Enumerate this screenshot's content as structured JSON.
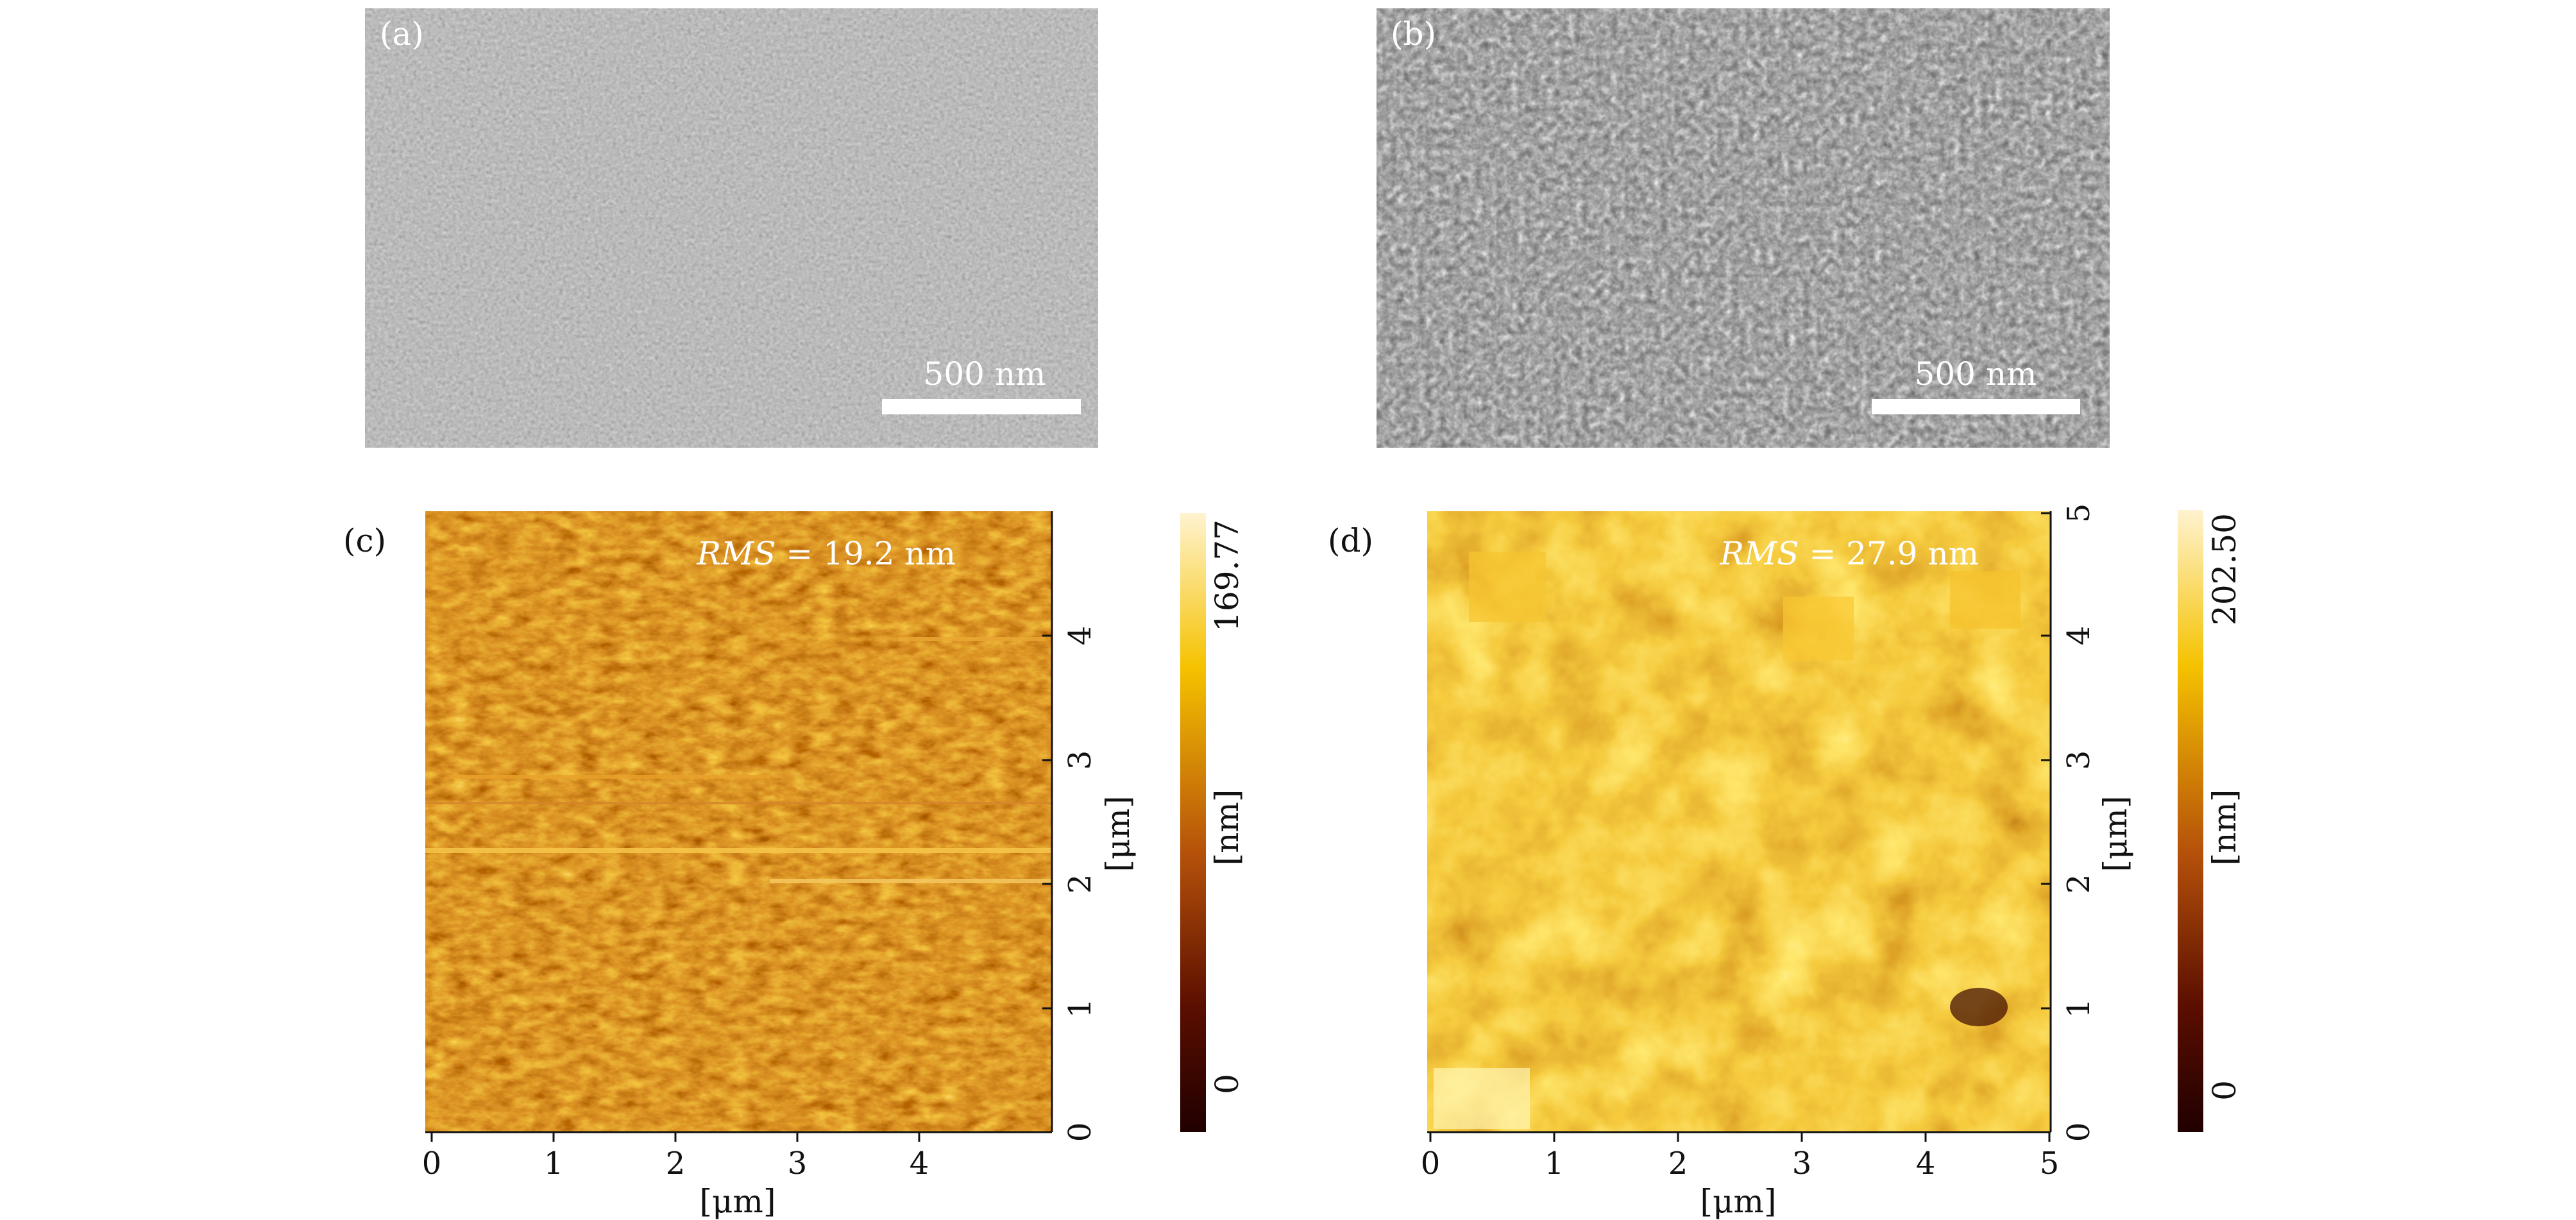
{
  "panels": {
    "a": {
      "label": "(a)",
      "scale_bar": "500 nm"
    },
    "b": {
      "label": "(b)",
      "scale_bar": "500 nm"
    },
    "c": {
      "label": "(c)",
      "rms_prefix": "RMS",
      "rms_value": " = 19.2 nm",
      "x_ticks": [
        "0",
        "1",
        "2",
        "3",
        "4"
      ],
      "y_ticks": [
        "0",
        "1",
        "2",
        "3",
        "4"
      ],
      "x_label": "[μm]",
      "y_label": "[μm]",
      "colorbar": {
        "max": "169.77",
        "min": "0",
        "label": "[nm]"
      }
    },
    "d": {
      "label": "(d)",
      "rms_prefix": "RMS",
      "rms_value": " = 27.9 nm",
      "x_ticks": [
        "0",
        "1",
        "2",
        "3",
        "4",
        "5"
      ],
      "y_ticks": [
        "0",
        "1",
        "2",
        "3",
        "4",
        "5"
      ],
      "x_label": "[μm]",
      "y_label": "[μm]",
      "colorbar": {
        "max": "202.50",
        "min": "0",
        "label": "[nm]"
      }
    }
  },
  "colors": {
    "sem_base": "#7b7b7b",
    "afm_dark": "#2a0400",
    "afm_mid": "#b85a06",
    "afm_light": "#ffeec0",
    "axis": "#111111",
    "scalebar": "#ffffff"
  }
}
